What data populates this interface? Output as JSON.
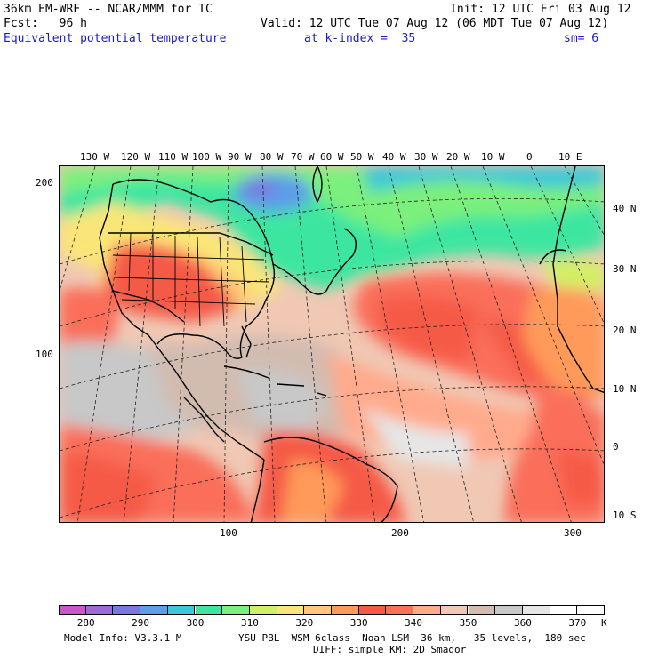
{
  "header": {
    "model_title": "36km EM-WRF -- NCAR/MMM for TC",
    "init": "Init: 12 UTC Fri 03 Aug 12",
    "fcst": "Fcst:   96 h",
    "valid": "Valid: 12 UTC Tue 07 Aug 12 (06 MDT Tue 07 Aug 12)",
    "field_name": "Equivalent potential temperature",
    "level": "at k-index =  35",
    "smoothing": "sm= 6"
  },
  "map": {
    "lon_labels": [
      "130 W",
      "120 W",
      "110 W",
      "100 W",
      "90 W",
      "80 W",
      "70 W",
      "60 W",
      "50 W",
      "40 W",
      "30 W",
      "20 W",
      "10 W",
      "0",
      "10 E"
    ],
    "lat_labels": [
      "40 N",
      "30 N",
      "20 N",
      "10 N",
      "0",
      "10 S"
    ],
    "grid_x_labels": [
      "100",
      "200",
      "300"
    ],
    "grid_y_labels": [
      "200",
      "100"
    ]
  },
  "colorbar": {
    "colors": [
      "#cc55cc",
      "#9b6ad6",
      "#7a78e0",
      "#5c9ee8",
      "#3cc8d6",
      "#3ce6a0",
      "#7cf07c",
      "#d2f064",
      "#fae678",
      "#ffc878",
      "#ff9a5a",
      "#f55a46",
      "#fa6e5a",
      "#ffaa8c",
      "#f0c8b4",
      "#d2bcb0",
      "#c8c8c8",
      "#e6e6e6",
      "#ffffff",
      "#ffffff"
    ],
    "labels": [
      "280",
      "290",
      "300",
      "310",
      "320",
      "330",
      "340",
      "350",
      "360",
      "370"
    ],
    "units": "K"
  },
  "footer": {
    "model_info": "Model Info: V3.3.1 M",
    "physics": "YSU PBL  WSM 6class  Noah LSM  36 km,   35 levels,  180 sec",
    "diffusion": "DIFF: simple KM: 2D Smagor"
  }
}
